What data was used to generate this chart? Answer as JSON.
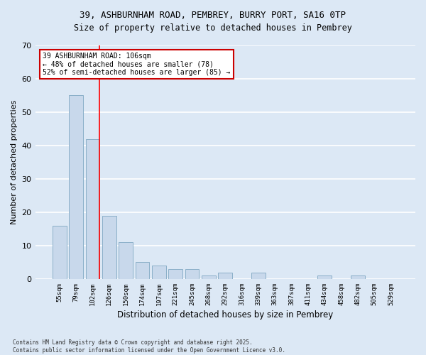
{
  "title_line1": "39, ASHBURNHAM ROAD, PEMBREY, BURRY PORT, SA16 0TP",
  "title_line2": "Size of property relative to detached houses in Pembrey",
  "xlabel": "Distribution of detached houses by size in Pembrey",
  "ylabel": "Number of detached properties",
  "categories": [
    "55sqm",
    "79sqm",
    "102sqm",
    "126sqm",
    "150sqm",
    "174sqm",
    "197sqm",
    "221sqm",
    "245sqm",
    "268sqm",
    "292sqm",
    "316sqm",
    "339sqm",
    "363sqm",
    "387sqm",
    "411sqm",
    "434sqm",
    "458sqm",
    "482sqm",
    "505sqm",
    "529sqm"
  ],
  "values": [
    16,
    55,
    42,
    19,
    11,
    5,
    4,
    3,
    3,
    1,
    2,
    0,
    2,
    0,
    0,
    0,
    1,
    0,
    1,
    0,
    0
  ],
  "bar_color": "#c8d8eb",
  "bar_edge_color": "#8aafc8",
  "background_color": "#dce8f5",
  "grid_color": "#ffffff",
  "red_line_index": 2,
  "annotation_line1": "39 ASHBURNHAM ROAD: 106sqm",
  "annotation_line2": "← 48% of detached houses are smaller (78)",
  "annotation_line3": "52% of semi-detached houses are larger (85) →",
  "ylim": [
    0,
    70
  ],
  "yticks": [
    0,
    10,
    20,
    30,
    40,
    50,
    60,
    70
  ],
  "footer_line1": "Contains HM Land Registry data © Crown copyright and database right 2025.",
  "footer_line2": "Contains public sector information licensed under the Open Government Licence v3.0."
}
